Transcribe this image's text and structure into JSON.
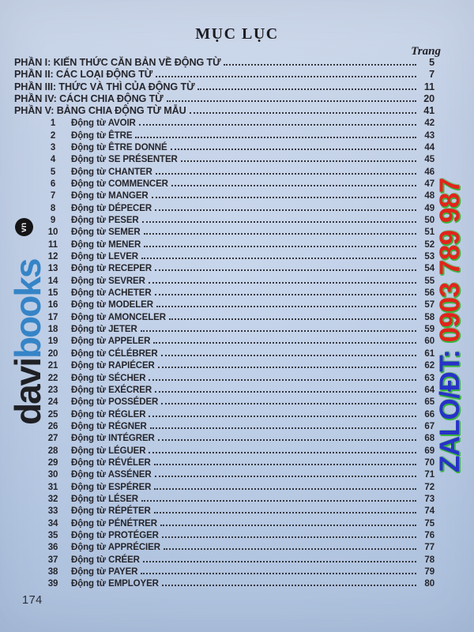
{
  "page": {
    "title": "MỤC LỤC",
    "page_col_label": "Trang",
    "footer_page_number": "174"
  },
  "sections": [
    {
      "label": "PHẦN I: KIẾN THỨC CĂN BẢN VỀ ĐỘNG TỪ",
      "page": "5"
    },
    {
      "label": "PHẦN II: CÁC LOẠI ĐỘNG TỪ",
      "page": "7"
    },
    {
      "label": "PHẦN III: THỨC VÀ THÌ CỦA ĐỘNG TỪ",
      "page": "11"
    },
    {
      "label": "PHẦN IV: CÁCH CHIA ĐỘNG TỪ",
      "page": "20"
    },
    {
      "label": "PHẦN V: BẢNG CHIA ĐỘNG TỪ MẪU",
      "page": "41"
    }
  ],
  "entries": [
    {
      "num": "1",
      "label": "Động từ AVOIR",
      "page": "42"
    },
    {
      "num": "2",
      "label": "Động từ ÊTRE",
      "page": "43"
    },
    {
      "num": "3",
      "label": "Động từ ÊTRE DONNÉ",
      "page": "44"
    },
    {
      "num": "4",
      "label": "Động từ SE PRÉSENTER",
      "page": "45"
    },
    {
      "num": "5",
      "label": "Động từ CHANTER",
      "page": "46"
    },
    {
      "num": "6",
      "label": "Động từ COMMENCER",
      "page": "47"
    },
    {
      "num": "7",
      "label": "Động từ MANGER",
      "page": "48"
    },
    {
      "num": "8",
      "label": "Động từ DÉPECER",
      "page": "49"
    },
    {
      "num": "9",
      "label": "Động từ PESER",
      "page": "50"
    },
    {
      "num": "10",
      "label": "Động từ SEMER",
      "page": "51"
    },
    {
      "num": "11",
      "label": "Động từ MENER",
      "page": "52"
    },
    {
      "num": "12",
      "label": "Động từ LEVER",
      "page": "53"
    },
    {
      "num": "13",
      "label": "Động từ RECEPER",
      "page": "54"
    },
    {
      "num": "14",
      "label": "Động từ SEVRER",
      "page": "55"
    },
    {
      "num": "15",
      "label": "Động từ ACHETER",
      "page": "56"
    },
    {
      "num": "16",
      "label": "Động từ MODELER",
      "page": "57"
    },
    {
      "num": "17",
      "label": "Động từ AMONCELER",
      "page": "58"
    },
    {
      "num": "18",
      "label": "Động từ JETER",
      "page": "59"
    },
    {
      "num": "19",
      "label": "Động từ APPELER",
      "page": "60"
    },
    {
      "num": "20",
      "label": "Động từ CÉLÉBRER",
      "page": "61"
    },
    {
      "num": "21",
      "label": "Động từ RAPIÉCER",
      "page": "62"
    },
    {
      "num": "22",
      "label": "Động từ SÉCHER",
      "page": "63"
    },
    {
      "num": "23",
      "label": "Động từ EXÉCRER",
      "page": "64"
    },
    {
      "num": "24",
      "label": "Động từ POSSÉDER",
      "page": "65"
    },
    {
      "num": "25",
      "label": "Động từ RÉGLER",
      "page": "66"
    },
    {
      "num": "26",
      "label": "Động từ RÉGNER",
      "page": "67"
    },
    {
      "num": "27",
      "label": "Động từ INTÉGRER",
      "page": "68"
    },
    {
      "num": "28",
      "label": "Động từ LÉGUER",
      "page": "69"
    },
    {
      "num": "29",
      "label": "Động từ RÉVÉLER",
      "page": "70"
    },
    {
      "num": "30",
      "label": "Động từ ASSÉNER",
      "page": "71"
    },
    {
      "num": "31",
      "label": "Động từ ESPÉRER",
      "page": "72"
    },
    {
      "num": "32",
      "label": "Động từ LÉSER",
      "page": "73"
    },
    {
      "num": "33",
      "label": "Động từ RÉPÉTER",
      "page": "74"
    },
    {
      "num": "34",
      "label": "Động từ PÉNÉTRER",
      "page": "75"
    },
    {
      "num": "35",
      "label": "Động từ PROTÉGER",
      "page": "76"
    },
    {
      "num": "36",
      "label": "Động từ APPRÉCIER",
      "page": "77"
    },
    {
      "num": "37",
      "label": "Động từ CRÉER",
      "page": "78"
    },
    {
      "num": "38",
      "label": "Động từ PAYER",
      "page": "79"
    },
    {
      "num": "39",
      "label": "Động từ EMPLOYER",
      "page": "80"
    }
  ],
  "watermark_left": {
    "brand_black_part": "davi",
    "brand_blue_part": "books",
    "badge": "vn",
    "blue_color": "#2e81c6",
    "black_color": "#17171a"
  },
  "watermark_right": {
    "prefix": "ZALO/ĐT: ",
    "number": "0903 789 987",
    "prefix_color": "#2832c8",
    "number_color": "#e2241b",
    "outline_color": "#3ab43e"
  }
}
